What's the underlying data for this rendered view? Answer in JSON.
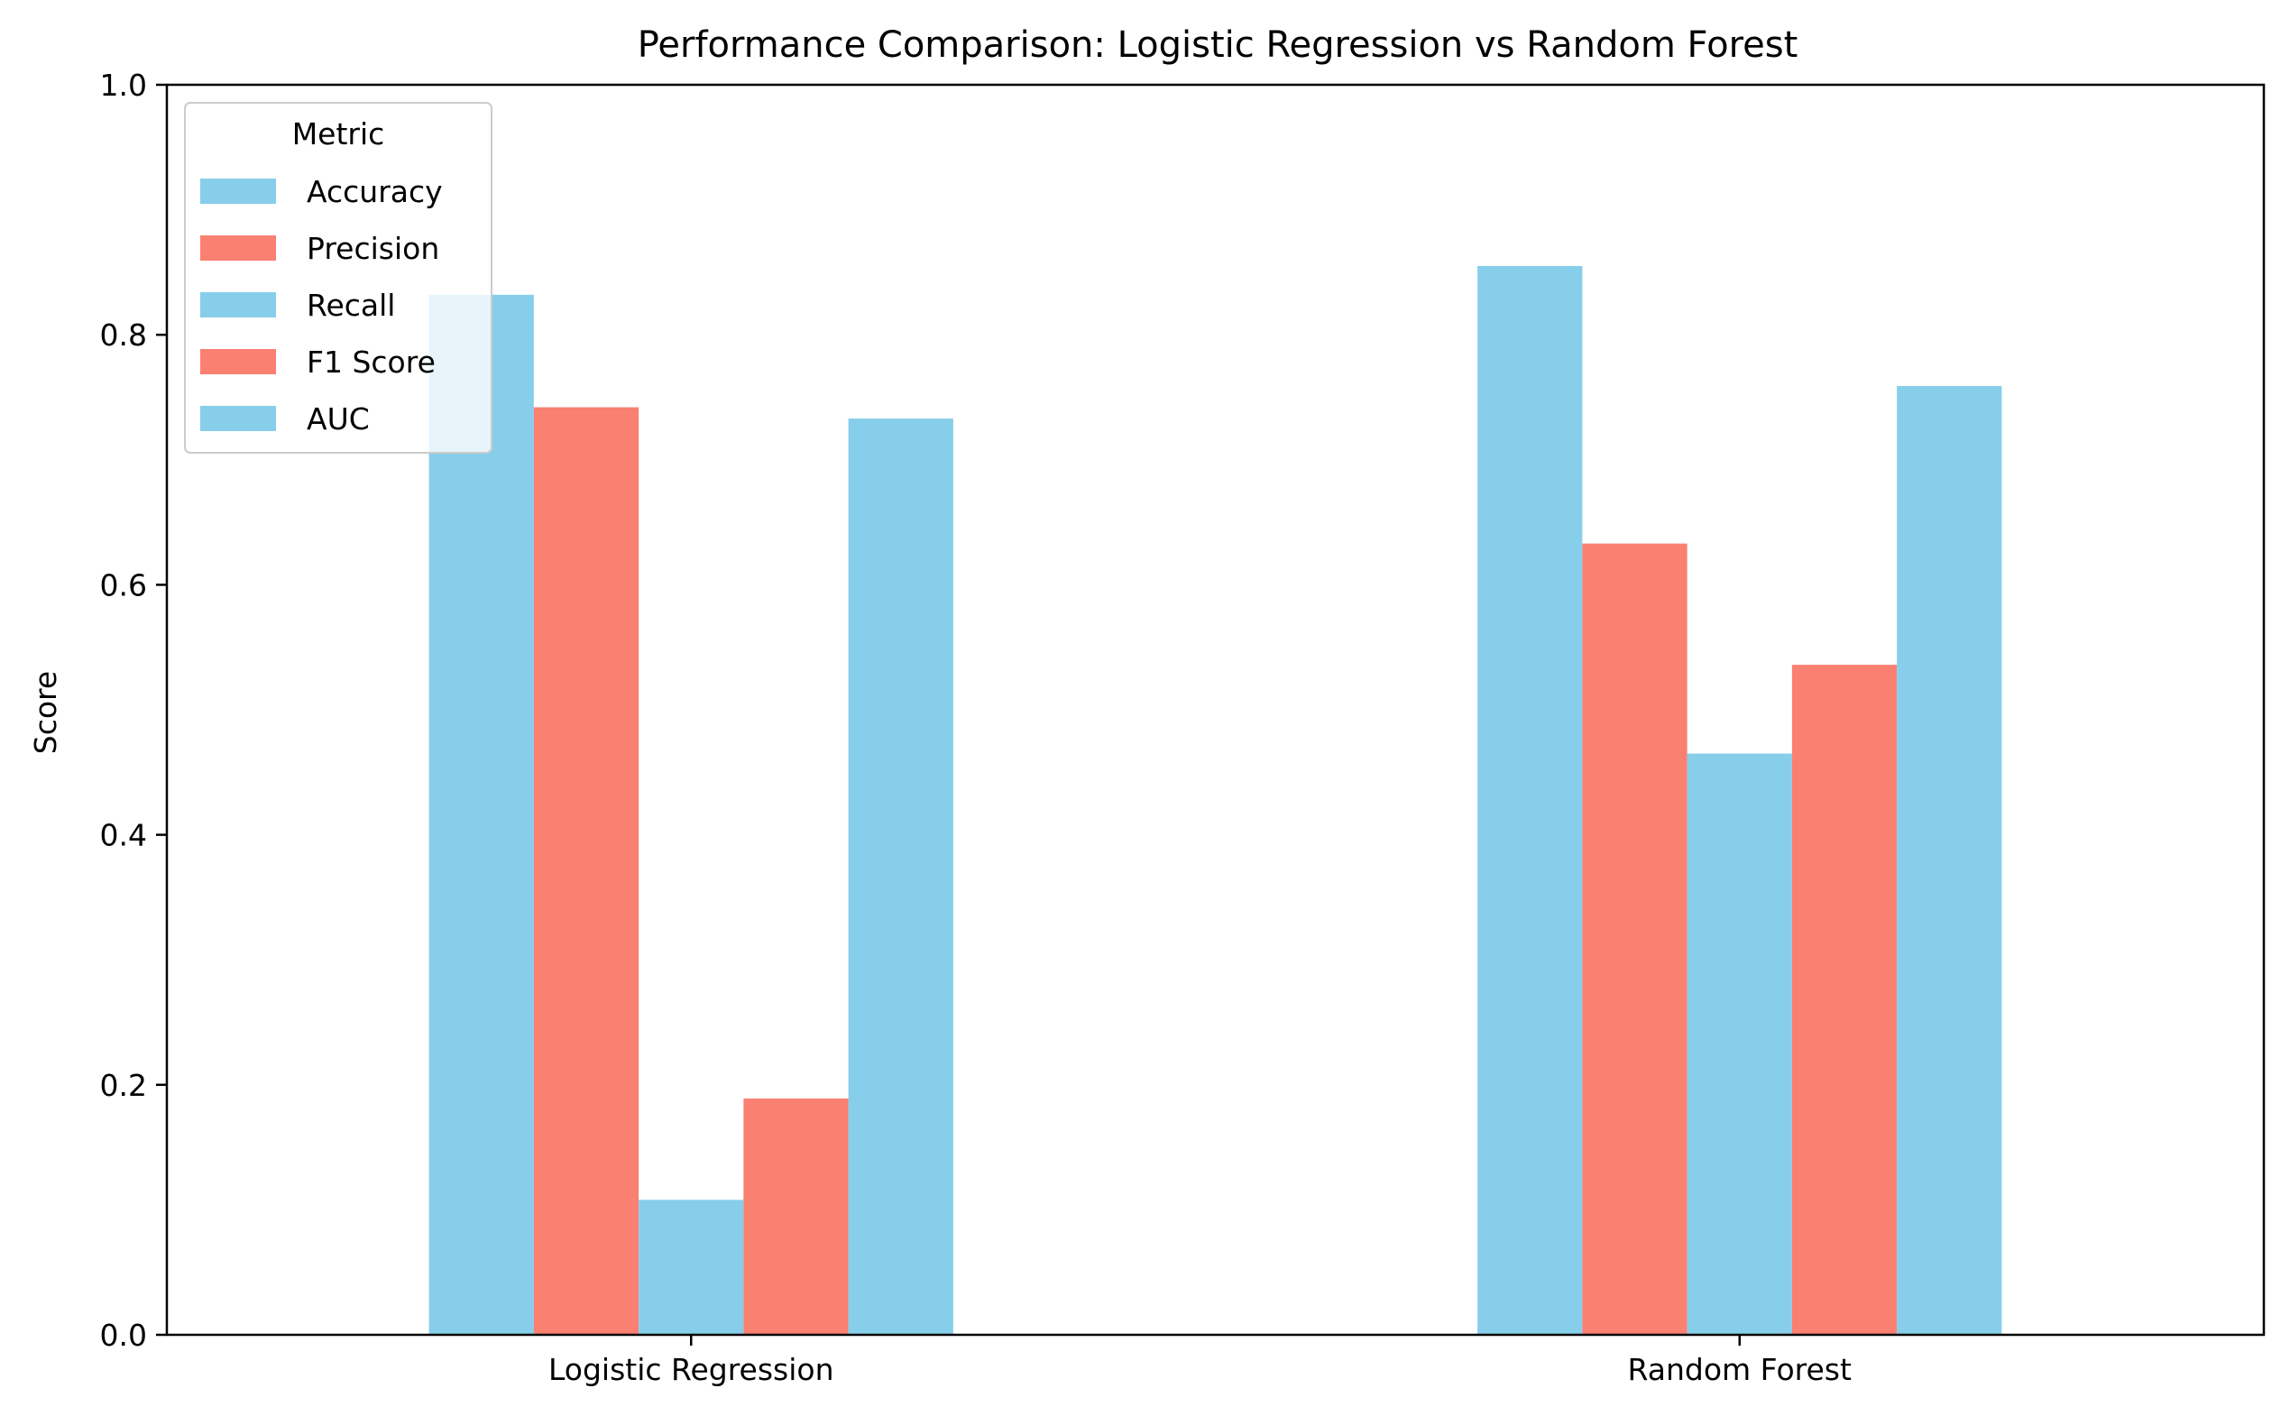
{
  "chart_data": {
    "type": "bar",
    "title": "Performance Comparison: Logistic Regression vs Random Forest",
    "xlabel": "",
    "ylabel": "Score",
    "ylim": [
      0,
      1.0
    ],
    "yticks": [
      "0.0",
      "0.2",
      "0.4",
      "0.6",
      "0.8",
      "1.0"
    ],
    "categories": [
      "Logistic Regression",
      "Random Forest"
    ],
    "legend": {
      "title": "Metric",
      "placement": "top-left"
    },
    "grid": false,
    "series": [
      {
        "name": "Accuracy",
        "color": "#87CEEB",
        "values": [
          0.832,
          0.855
        ]
      },
      {
        "name": "Precision",
        "color": "#FA8072",
        "values": [
          0.742,
          0.633
        ]
      },
      {
        "name": "Recall",
        "color": "#87CEEB",
        "values": [
          0.108,
          0.465
        ]
      },
      {
        "name": "F1 Score",
        "color": "#FA8072",
        "values": [
          0.189,
          0.536
        ]
      },
      {
        "name": "AUC",
        "color": "#87CEEB",
        "values": [
          0.733,
          0.759
        ]
      }
    ]
  }
}
